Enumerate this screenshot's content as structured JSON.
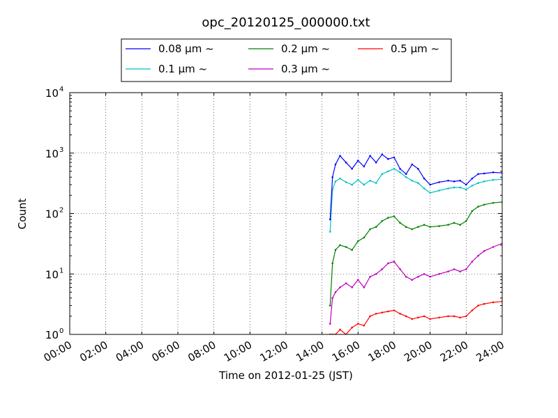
{
  "chart_data": {
    "type": "line",
    "title": "opc_20120125_000000.txt",
    "xlabel": "Time on 2012-01-25 (JST)",
    "ylabel": "Count",
    "yscale": "log",
    "ylim": [
      1,
      10000
    ],
    "xlim": [
      "00:00",
      "24:00"
    ],
    "grid": true,
    "legend_placement": "top, above plot",
    "x_ticks": [
      "00:00",
      "02:00",
      "04:00",
      "06:00",
      "08:00",
      "10:00",
      "12:00",
      "14:00",
      "16:00",
      "18:00",
      "20:00",
      "22:00",
      "24:00"
    ],
    "y_ticks": [
      {
        "value": 1,
        "base": "10",
        "exp": "0"
      },
      {
        "value": 10,
        "base": "10",
        "exp": "1"
      },
      {
        "value": 100,
        "base": "10",
        "exp": "2"
      },
      {
        "value": 1000,
        "base": "10",
        "exp": "3"
      },
      {
        "value": 10000,
        "base": "10",
        "exp": "4"
      }
    ],
    "series": [
      {
        "name": "0.08 μm ~",
        "color": "#0000ff",
        "x": [
          "14:27",
          "14:35",
          "14:45",
          "15:00",
          "15:20",
          "15:40",
          "16:00",
          "16:20",
          "16:40",
          "17:00",
          "17:20",
          "17:40",
          "18:00",
          "18:20",
          "18:40",
          "19:00",
          "19:20",
          "19:40",
          "20:00",
          "20:30",
          "21:00",
          "21:20",
          "21:40",
          "22:00",
          "22:20",
          "22:40",
          "23:00",
          "23:30",
          "24:00"
        ],
        "y": [
          80,
          400,
          650,
          900,
          700,
          550,
          750,
          600,
          900,
          700,
          950,
          800,
          850,
          550,
          450,
          650,
          550,
          380,
          300,
          330,
          350,
          340,
          350,
          300,
          380,
          450,
          460,
          480,
          470
        ]
      },
      {
        "name": "0.1 μm ~",
        "color": "#00bfbf",
        "x": [
          "14:27",
          "14:35",
          "14:45",
          "15:00",
          "15:20",
          "15:40",
          "16:00",
          "16:20",
          "16:40",
          "17:00",
          "17:20",
          "17:40",
          "18:00",
          "18:20",
          "18:40",
          "19:00",
          "19:20",
          "19:40",
          "20:00",
          "20:30",
          "21:00",
          "21:20",
          "21:40",
          "22:00",
          "22:20",
          "22:40",
          "23:00",
          "23:30",
          "24:00"
        ],
        "y": [
          50,
          250,
          340,
          380,
          330,
          300,
          360,
          300,
          350,
          320,
          450,
          500,
          550,
          480,
          400,
          350,
          320,
          260,
          220,
          240,
          260,
          270,
          270,
          250,
          290,
          320,
          340,
          360,
          370
        ]
      },
      {
        "name": "0.2 μm ~",
        "color": "#007f00",
        "x": [
          "14:27",
          "14:35",
          "14:45",
          "15:00",
          "15:20",
          "15:40",
          "16:00",
          "16:20",
          "16:40",
          "17:00",
          "17:20",
          "17:40",
          "18:00",
          "18:20",
          "18:40",
          "19:00",
          "19:20",
          "19:40",
          "20:00",
          "20:30",
          "21:00",
          "21:20",
          "21:40",
          "22:00",
          "22:20",
          "22:40",
          "23:00",
          "23:30",
          "24:00"
        ],
        "y": [
          3,
          15,
          25,
          30,
          28,
          25,
          35,
          40,
          55,
          60,
          75,
          85,
          90,
          70,
          60,
          55,
          60,
          65,
          60,
          62,
          65,
          70,
          65,
          75,
          110,
          130,
          140,
          150,
          155
        ]
      },
      {
        "name": "0.3 μm ~",
        "color": "#bf00bf",
        "x": [
          "14:27",
          "14:35",
          "14:45",
          "15:00",
          "15:20",
          "15:40",
          "16:00",
          "16:20",
          "16:40",
          "17:00",
          "17:20",
          "17:40",
          "18:00",
          "18:20",
          "18:40",
          "19:00",
          "19:20",
          "19:40",
          "20:00",
          "20:30",
          "21:00",
          "21:20",
          "21:40",
          "22:00",
          "22:20",
          "22:40",
          "23:00",
          "23:30",
          "24:00"
        ],
        "y": [
          1.5,
          4,
          5,
          6,
          7,
          6,
          8,
          6,
          9,
          10,
          12,
          15,
          16,
          12,
          9,
          8,
          9,
          10,
          9,
          10,
          11,
          12,
          11,
          12,
          16,
          20,
          24,
          28,
          32
        ]
      },
      {
        "name": "0.5 μm ~",
        "color": "#ff0000",
        "x": [
          "14:27",
          "14:35",
          "14:45",
          "15:00",
          "15:20",
          "15:40",
          "16:00",
          "16:20",
          "16:40",
          "17:00",
          "17:20",
          "17:40",
          "18:00",
          "18:20",
          "18:40",
          "19:00",
          "19:20",
          "19:40",
          "20:00",
          "20:30",
          "21:00",
          "21:20",
          "21:40",
          "22:00",
          "22:20",
          "22:40",
          "23:00",
          "23:30",
          "24:00"
        ],
        "y": [
          1,
          1,
          1,
          1.2,
          1,
          1.3,
          1.5,
          1.4,
          2,
          2.2,
          2.3,
          2.4,
          2.5,
          2.2,
          2,
          1.8,
          1.9,
          2,
          1.8,
          1.9,
          2,
          2,
          1.9,
          2,
          2.5,
          3,
          3.2,
          3.4,
          3.5
        ]
      }
    ]
  }
}
